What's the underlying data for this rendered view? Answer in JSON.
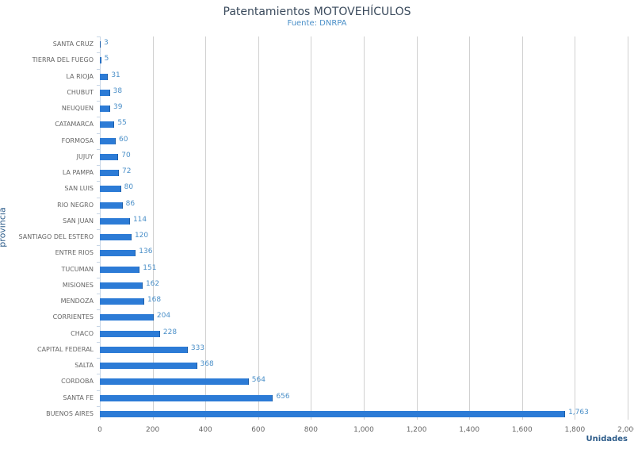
{
  "chart_data": {
    "type": "bar",
    "orientation": "horizontal",
    "title": "Patentamientos MOTOVEHÍCULOS",
    "subtitle": "Fuente: DNRPA",
    "xlabel": "Unidades",
    "ylabel": "provincia",
    "xlim": [
      0,
      2000
    ],
    "x_ticks": [
      "0",
      "200",
      "400",
      "600",
      "800",
      "1,000",
      "1,200",
      "1,400",
      "1,600",
      "1,800",
      "2,000"
    ],
    "grid": true,
    "legend": null,
    "bar_color": "#2c7bd6",
    "categories": [
      "SANTA CRUZ",
      "TIERRA DEL FUEGO",
      "LA RIOJA",
      "CHUBUT",
      "NEUQUEN",
      "CATAMARCA",
      "FORMOSA",
      "JUJUY",
      "LA PAMPA",
      "SAN LUIS",
      "RIO NEGRO",
      "SAN JUAN",
      "SANTIAGO DEL ESTERO",
      "ENTRE RIOS",
      "TUCUMAN",
      "MISIONES",
      "MENDOZA",
      "CORRIENTES",
      "CHACO",
      "CAPITAL FEDERAL",
      "SALTA",
      "CORDOBA",
      "SANTA FE",
      "BUENOS AIRES"
    ],
    "values": [
      3,
      5,
      31,
      38,
      39,
      55,
      60,
      70,
      72,
      80,
      86,
      114,
      120,
      136,
      151,
      162,
      168,
      204,
      228,
      333,
      368,
      564,
      656,
      1763
    ],
    "value_labels": [
      "3",
      "5",
      "31",
      "38",
      "39",
      "55",
      "60",
      "70",
      "72",
      "80",
      "86",
      "114",
      "120",
      "136",
      "151",
      "162",
      "168",
      "204",
      "228",
      "333",
      "368",
      "564",
      "656",
      "1,763"
    ]
  }
}
